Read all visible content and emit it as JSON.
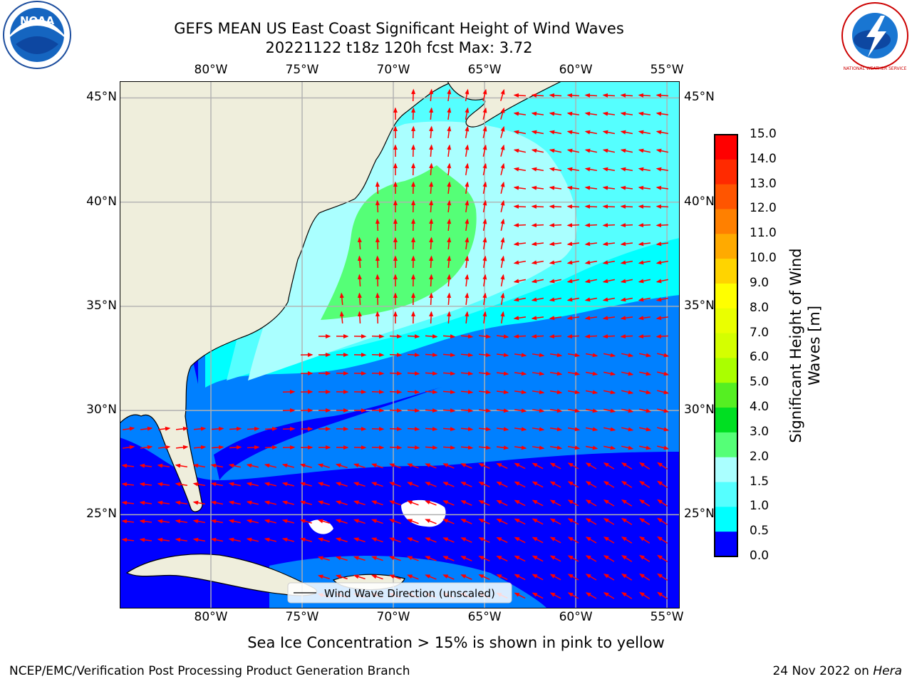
{
  "header": {
    "title_line1": "GEFS MEAN US East Coast Significant Height of Wind Waves",
    "title_line2": "20221122 t18z 120h fcst   Max: 3.72"
  },
  "logos": {
    "noaa_text": "NOAA",
    "nws_text": "NATIONAL WEATHER SERVICE"
  },
  "map": {
    "lon_labels": [
      "80°W",
      "75°W",
      "70°W",
      "65°W",
      "60°W",
      "55°W"
    ],
    "lat_labels": [
      "45°N",
      "40°N",
      "35°N",
      "30°N",
      "25°N"
    ],
    "lon_values": [
      -80,
      -75,
      -70,
      -65,
      -60,
      -55
    ],
    "lat_values": [
      45,
      40,
      35,
      30,
      25
    ],
    "extent": {
      "lon_min": -85,
      "lon_max": -54.3,
      "lat_min": 20.5,
      "lat_max": 45.8
    },
    "colors": {
      "land": "#efeedc",
      "grid": "#b0b0b0",
      "arrow": "#ff0000"
    },
    "legend_text": "Wind Wave Direction (unscaled)"
  },
  "colorbar": {
    "label_line1": "Significant Height of Wind",
    "label_line2": "Waves [m]",
    "ticks": [
      "15.0",
      "14.0",
      "13.0",
      "12.0",
      "11.0",
      "10.0",
      "9.0",
      "8.0",
      "7.0",
      "6.0",
      "5.0",
      "4.0",
      "3.0",
      "2.0",
      "1.5",
      "1.0",
      "0.5",
      "0.0"
    ],
    "colors": [
      "#ff0000",
      "#ff2a00",
      "#ff5500",
      "#ff8000",
      "#ffaa00",
      "#ffd400",
      "#ffff00",
      "#eaff00",
      "#d4ff00",
      "#aaff00",
      "#55ef22",
      "#00df22",
      "#55ff77",
      "#aaffff",
      "#55ffff",
      "#00ffff",
      "#0080ff",
      "#0000ff"
    ]
  },
  "note": "Sea Ice Concentration > 15% is shown in pink to yellow",
  "footer": {
    "left": "NCEP/EMC/Verification Post Processing Product Generation Branch",
    "right_date": "24 Nov 2022 on ",
    "right_host": "Hera"
  }
}
